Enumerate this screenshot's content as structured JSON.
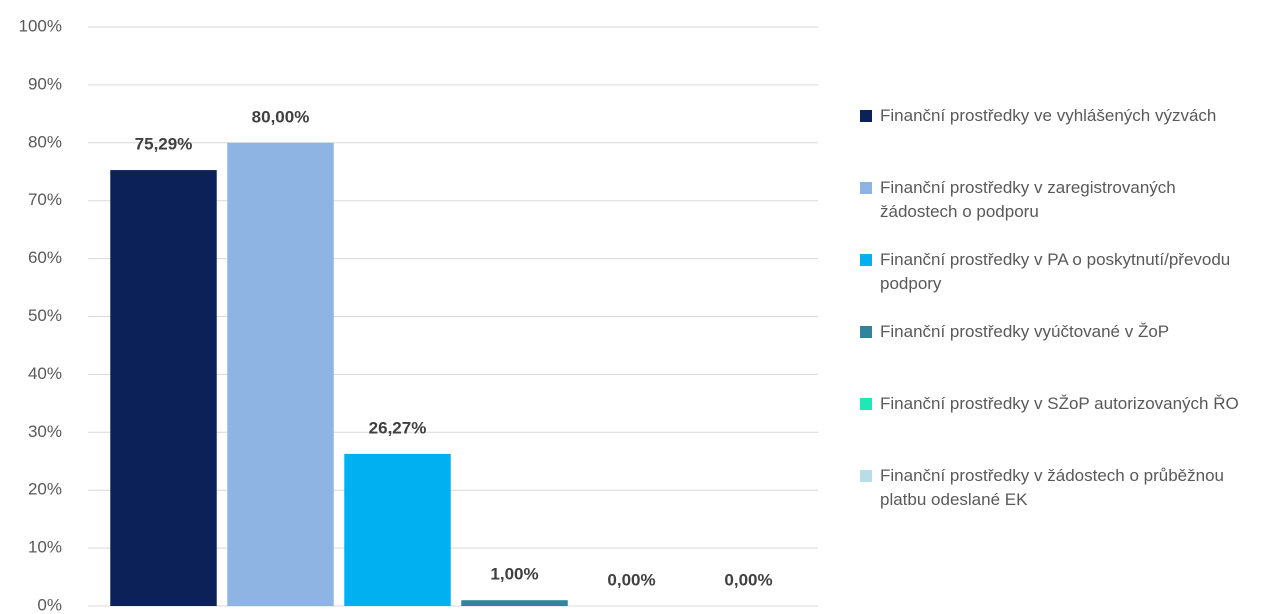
{
  "chart_data": {
    "type": "bar",
    "categories": [
      null
    ],
    "series": [
      {
        "name": "Finanční prostředky ve vyhlášených výzvách",
        "color": "#0b2157",
        "values": [
          75.29
        ],
        "value_labels": [
          "75,29%"
        ]
      },
      {
        "name": "Finanční prostředky v zaregistrovaných žádostech o podporu",
        "color": "#8eb4e3",
        "values": [
          80.0
        ],
        "value_labels": [
          "80,00%"
        ]
      },
      {
        "name": "Finanční prostředky v PA o poskytnutí/převodu podpory",
        "color": "#00b0f0",
        "values": [
          26.27
        ],
        "value_labels": [
          "26,27%"
        ]
      },
      {
        "name": "Finanční prostředky vyúčtované v ŽoP",
        "color": "#31849b",
        "values": [
          1.0
        ],
        "value_labels": [
          "1,00%"
        ]
      },
      {
        "name": "Finanční prostředky v SŽoP autorizovaných ŘO",
        "color": "#1de9b6",
        "values": [
          0.0
        ],
        "value_labels": [
          "0,00%"
        ]
      },
      {
        "name": "Finanční prostředky v žádostech o průběžnou platbu odeslané EK",
        "color": "#b7dde8",
        "values": [
          0.0
        ],
        "value_labels": [
          "0,00%"
        ]
      }
    ],
    "ylim": [
      0,
      100
    ],
    "yticks": [
      {
        "value": 0,
        "label": "0%"
      },
      {
        "value": 10,
        "label": "10%"
      },
      {
        "value": 20,
        "label": "20%"
      },
      {
        "value": 30,
        "label": "30%"
      },
      {
        "value": 40,
        "label": "40%"
      },
      {
        "value": 50,
        "label": "50%"
      },
      {
        "value": 60,
        "label": "60%"
      },
      {
        "value": 70,
        "label": "70%"
      },
      {
        "value": 80,
        "label": "80%"
      },
      {
        "value": 90,
        "label": "90%"
      },
      {
        "value": 100,
        "label": "100%"
      }
    ],
    "grid": true,
    "legend": "right"
  }
}
